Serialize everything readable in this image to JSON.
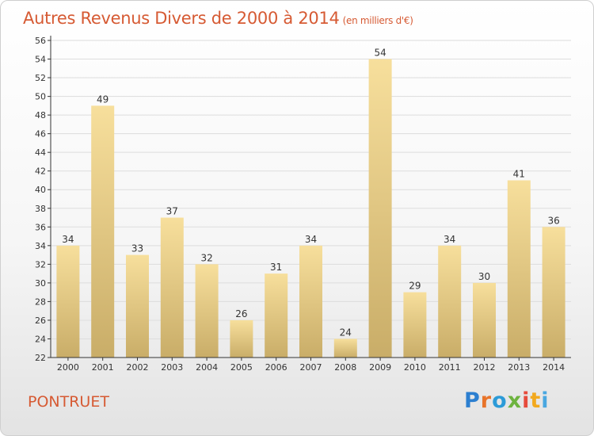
{
  "header": {
    "title": "Autres Revenus Divers de 2000 à 2014",
    "subtitle": "(en milliers d'€)"
  },
  "footer": {
    "place": "PONTRUET",
    "logo_letters": [
      "P",
      "r",
      "o",
      "x",
      "i",
      "t",
      "i"
    ]
  },
  "colors": {
    "title": "#d65a33",
    "bar_light": "#f7df9c",
    "bar_dark": "#c9ad68",
    "axis": "#333333",
    "grid": "#dddddd"
  },
  "chart_data": {
    "type": "bar",
    "title": "Autres Revenus Divers de 2000 à 2014",
    "subtitle": "(en milliers d'€)",
    "xlabel": "",
    "ylabel": "",
    "categories": [
      "2000",
      "2001",
      "2002",
      "2003",
      "2004",
      "2005",
      "2006",
      "2007",
      "2008",
      "2009",
      "2010",
      "2011",
      "2012",
      "2013",
      "2014"
    ],
    "values": [
      34,
      49,
      33,
      37,
      32,
      26,
      31,
      34,
      24,
      54,
      29,
      34,
      30,
      41,
      36
    ],
    "ylim": [
      22,
      56
    ],
    "yticks": [
      22,
      24,
      26,
      28,
      30,
      32,
      34,
      36,
      38,
      40,
      42,
      44,
      46,
      48,
      50,
      52,
      54,
      56
    ],
    "grid": true,
    "legend": "none"
  }
}
